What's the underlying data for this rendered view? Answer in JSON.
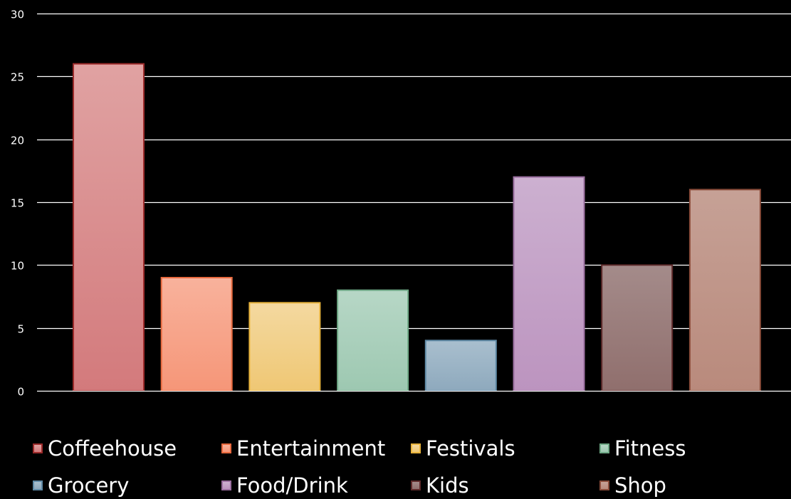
{
  "chart_data": {
    "type": "bar",
    "title": "",
    "xlabel": "",
    "ylabel": "",
    "ylim": [
      0,
      30
    ],
    "yticks": [
      "0",
      "5",
      "10",
      "15",
      "20",
      "25",
      "30"
    ],
    "grid": true,
    "legend_position": "bottom",
    "series": [
      {
        "name": "Coffeehouse",
        "value": 26,
        "color": "#d98a8c",
        "top_color": "#e0a2a2",
        "bottom_color": "#d37a7c",
        "border": "#9c2b2b"
      },
      {
        "name": "Entertainment",
        "value": 9,
        "color": "#f6a384",
        "top_color": "#f8b29c",
        "bottom_color": "#f69678",
        "border": "#e8693e"
      },
      {
        "name": "Festivals",
        "value": 7,
        "color": "#f2cf85",
        "top_color": "#f4d9a0",
        "bottom_color": "#efc774",
        "border": "#e8b33c"
      },
      {
        "name": "Fitness",
        "value": 8,
        "color": "#a9cfba",
        "top_color": "#b7d7c6",
        "bottom_color": "#9dc8b1",
        "border": "#6fa986"
      },
      {
        "name": "Grocery",
        "value": 4,
        "color": "#9ab4c6",
        "top_color": "#a9bfce",
        "bottom_color": "#8ea9bd",
        "border": "#5f8aa6"
      },
      {
        "name": "Food/Drink",
        "value": 17,
        "color": "#c4a3c8",
        "top_color": "#ccb0d0",
        "bottom_color": "#bc94bf",
        "border": "#9b6fa0"
      },
      {
        "name": "Kids",
        "value": 10,
        "color": "#9a7e7c",
        "top_color": "#a48b8a",
        "bottom_color": "#906f6d",
        "border": "#5e2a2a"
      },
      {
        "name": "Shop",
        "value": 16,
        "color": "#c09387",
        "top_color": "#c6a196",
        "bottom_color": "#b98a7c",
        "border": "#8a4c3a"
      }
    ]
  }
}
